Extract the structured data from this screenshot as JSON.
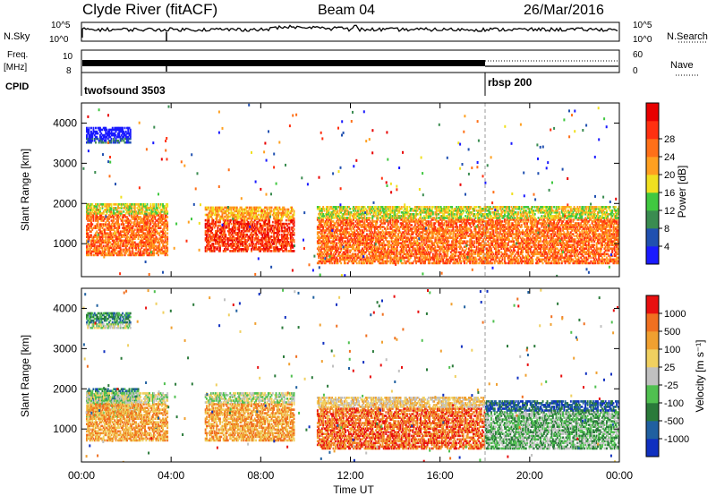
{
  "header": {
    "station": "Clyde River (fitACF)",
    "beam": "Beam 04",
    "date": "26/Mar/2016"
  },
  "top_panels": {
    "nsky_label": "N.Sky",
    "nsky_ticks": [
      "10^5",
      "10^0"
    ],
    "nsearch_label": "N.Search",
    "nsearch_ticks": [
      "10^5",
      "10^0"
    ],
    "freq_label": "Freq.",
    "freq_unit": "[MHz]",
    "freq_ticks": [
      "10",
      "8"
    ],
    "nave_label": "Nave",
    "nave_ticks": [
      "60",
      "0"
    ],
    "cpid_label": "CPID",
    "cpid_segments": [
      {
        "name": "twofsound 3503",
        "start_hour": 0,
        "end_hour": 18
      },
      {
        "name": "rbsp 200",
        "start_hour": 18,
        "end_hour": 24
      }
    ]
  },
  "chart_data": [
    {
      "type": "heatmap",
      "title": "",
      "xlabel": "",
      "ylabel": "Slant Range [km]",
      "xlim": [
        0,
        24
      ],
      "ylim": [
        180,
        4500
      ],
      "x_ticks": [
        "00:00",
        "04:00",
        "08:00",
        "12:00",
        "16:00",
        "20:00",
        "00:00"
      ],
      "x_tick_values": [
        0,
        4,
        8,
        12,
        16,
        20,
        24
      ],
      "y_ticks": [
        1000,
        2000,
        3000,
        4000
      ],
      "colorbar": {
        "label": "Power [dB]",
        "ticks": [
          "4",
          "8",
          "12",
          "16",
          "20",
          "24",
          "28"
        ],
        "colors": [
          "#1a1aff",
          "#2050b0",
          "#3a8c50",
          "#40c840",
          "#f0e020",
          "#ffa020",
          "#ff7018",
          "#ff3010",
          "#e80000"
        ]
      },
      "regions": [
        {
          "x0": 0.2,
          "x1": 3.8,
          "r0": 700,
          "r1": 2000,
          "level": 6
        },
        {
          "x0": 5.5,
          "x1": 9.5,
          "r0": 800,
          "r1": 1900,
          "level": 7
        },
        {
          "x0": 10.5,
          "x1": 24,
          "r0": 500,
          "r1": 1900,
          "level": 6
        },
        {
          "x0": 0.2,
          "x1": 2.2,
          "r0": 3500,
          "r1": 3900,
          "level": 1
        }
      ]
    },
    {
      "type": "heatmap",
      "title": "",
      "xlabel": "Time UT",
      "ylabel": "Slant Range [km]",
      "xlim": [
        0,
        24
      ],
      "ylim": [
        180,
        4500
      ],
      "x_ticks": [
        "00:00",
        "04:00",
        "08:00",
        "12:00",
        "16:00",
        "20:00",
        "00:00"
      ],
      "x_tick_values": [
        0,
        4,
        8,
        12,
        16,
        20,
        24
      ],
      "y_ticks": [
        1000,
        2000,
        3000,
        4000
      ],
      "colorbar": {
        "label": "Velocity [m s⁻¹]",
        "ticks": [
          "1000",
          "500",
          "100",
          "25",
          "-25",
          "-100",
          "-500",
          "-1000"
        ],
        "colors": [
          "#1030c0",
          "#2060a0",
          "#2a7a3a",
          "#50c050",
          "#c0c0c0",
          "#f0d060",
          "#f0a030",
          "#f07020",
          "#e81010"
        ]
      },
      "regions": [
        {
          "x0": 0.2,
          "x1": 2.5,
          "r0": 1300,
          "r1": 2000,
          "level": 4
        },
        {
          "x0": 0.2,
          "x1": 3.8,
          "r0": 700,
          "r1": 1900,
          "level": 6
        },
        {
          "x0": 5.5,
          "x1": 9.5,
          "r0": 700,
          "r1": 1900,
          "level": 6
        },
        {
          "x0": 10.5,
          "x1": 18,
          "r0": 500,
          "r1": 1800,
          "level": 7
        },
        {
          "x0": 18,
          "x1": 24,
          "r0": 500,
          "r1": 1700,
          "level": 3
        },
        {
          "x0": 0.2,
          "x1": 2.2,
          "r0": 3500,
          "r1": 3900,
          "level": 4
        }
      ]
    }
  ]
}
